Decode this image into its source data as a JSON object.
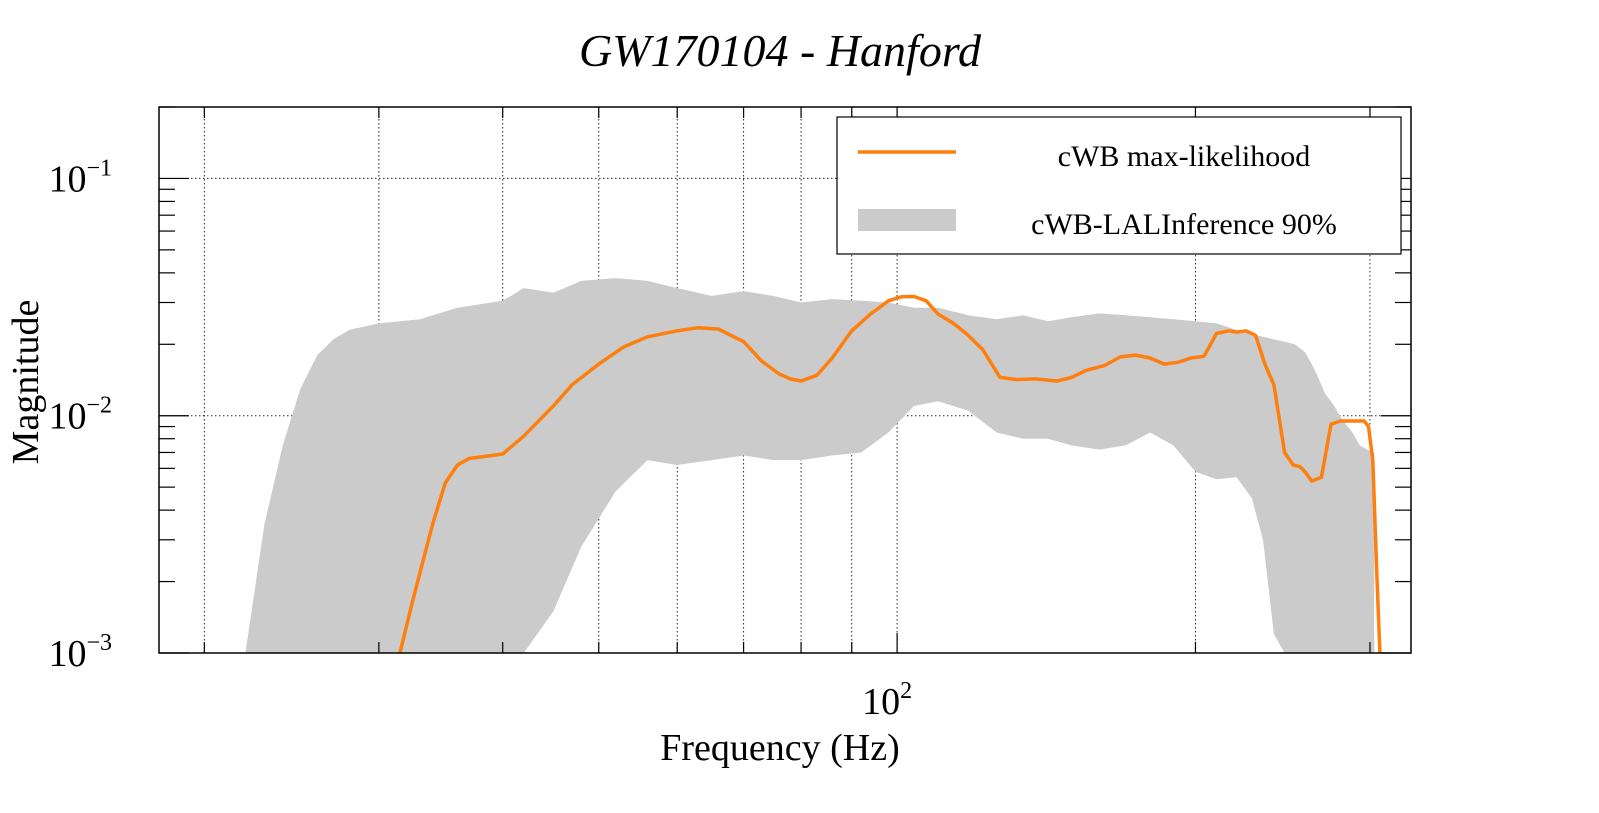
{
  "chart_data": {
    "type": "line",
    "title": "GW170104 - Hanford",
    "xlabel": "Frequency (Hz)",
    "ylabel": "Magnitude",
    "xscale": "log",
    "yscale": "log",
    "xlim": [
      18,
      330
    ],
    "ylim": [
      0.001,
      0.2
    ],
    "grid": true,
    "x_tick_labels": [
      {
        "value": 100,
        "base": "10",
        "exp": "2"
      }
    ],
    "y_tick_labels": [
      {
        "value": 0.001,
        "base": "10",
        "exp": "−3"
      },
      {
        "value": 0.01,
        "base": "10",
        "exp": "−2"
      },
      {
        "value": 0.1,
        "base": "10",
        "exp": "−1"
      }
    ],
    "legend": {
      "position": "top-right",
      "entries": [
        {
          "label": "cWB max-likelihood",
          "kind": "line"
        },
        {
          "label": "cWB-LALInference 90%",
          "kind": "band"
        }
      ]
    },
    "colors": {
      "line": "#ff7f0e",
      "band": "#cbcbcb"
    },
    "series": [
      {
        "name": "cWB max-likelihood",
        "kind": "line",
        "x": [
          31.5,
          32.5,
          34,
          35,
          36,
          37,
          38,
          40,
          42,
          45,
          47,
          50,
          53,
          56,
          60,
          63,
          66,
          70,
          73,
          76,
          78,
          80,
          83,
          86,
          90,
          94,
          98,
          101,
          104,
          107,
          110,
          114,
          118,
          122,
          127,
          132,
          138,
          145,
          150,
          155,
          162,
          168,
          174,
          180,
          186,
          192,
          198,
          204,
          210,
          216,
          220,
          225,
          230,
          235,
          240,
          246,
          251,
          255,
          258,
          262,
          268,
          274,
          280,
          286,
          292,
          296,
          299,
          302,
          305,
          307
        ],
        "y": [
          0.001,
          0.0017,
          0.0035,
          0.0052,
          0.0062,
          0.0066,
          0.0067,
          0.0069,
          0.0082,
          0.011,
          0.0135,
          0.0165,
          0.0195,
          0.0215,
          0.0228,
          0.0235,
          0.0232,
          0.0205,
          0.017,
          0.015,
          0.0143,
          0.014,
          0.0148,
          0.0175,
          0.0228,
          0.0268,
          0.0305,
          0.0317,
          0.0318,
          0.0305,
          0.0268,
          0.0245,
          0.0218,
          0.019,
          0.0145,
          0.0142,
          0.0143,
          0.014,
          0.0145,
          0.0155,
          0.0163,
          0.0177,
          0.018,
          0.0175,
          0.0165,
          0.0168,
          0.0175,
          0.0178,
          0.0222,
          0.0228,
          0.0225,
          0.0228,
          0.0218,
          0.0165,
          0.0135,
          0.007,
          0.0062,
          0.0061,
          0.0058,
          0.0053,
          0.0055,
          0.0092,
          0.0095,
          0.0095,
          0.0095,
          0.0095,
          0.009,
          0.0065,
          0.002,
          0.001
        ]
      },
      {
        "name": "cWB-LALInference 90%",
        "kind": "band",
        "x": [
          22,
          23,
          24,
          25,
          26,
          27,
          28,
          30,
          33,
          36,
          40,
          42,
          45,
          48,
          52,
          56,
          60,
          65,
          70,
          75,
          80,
          86,
          92,
          98,
          104,
          110,
          118,
          126,
          134,
          142,
          150,
          160,
          170,
          180,
          190,
          200,
          210,
          220,
          228,
          234,
          240,
          246,
          252,
          258,
          262,
          266,
          270,
          276,
          282,
          288,
          293,
          298,
          303
        ],
        "upper": [
          0.001,
          0.0035,
          0.0075,
          0.013,
          0.018,
          0.021,
          0.023,
          0.0245,
          0.0255,
          0.0285,
          0.0305,
          0.0345,
          0.033,
          0.037,
          0.038,
          0.037,
          0.0345,
          0.032,
          0.0335,
          0.032,
          0.03,
          0.031,
          0.0305,
          0.03,
          0.0285,
          0.0285,
          0.0265,
          0.0255,
          0.0265,
          0.025,
          0.026,
          0.027,
          0.0265,
          0.026,
          0.0255,
          0.025,
          0.0245,
          0.023,
          0.022,
          0.0215,
          0.021,
          0.0205,
          0.02,
          0.0185,
          0.0165,
          0.0145,
          0.0125,
          0.011,
          0.0095,
          0.0085,
          0.0075,
          0.0072,
          0.007
        ],
        "lower": [
          0.001,
          0.001,
          0.001,
          0.001,
          0.001,
          0.001,
          0.001,
          0.001,
          0.001,
          0.001,
          0.001,
          0.001,
          0.0015,
          0.0028,
          0.0048,
          0.0065,
          0.0062,
          0.0065,
          0.0068,
          0.0065,
          0.0065,
          0.0068,
          0.007,
          0.0085,
          0.011,
          0.0115,
          0.0105,
          0.0085,
          0.008,
          0.008,
          0.0075,
          0.0072,
          0.0075,
          0.0085,
          0.0075,
          0.0058,
          0.0054,
          0.0055,
          0.0045,
          0.003,
          0.0012,
          0.001,
          0.001,
          0.001,
          0.001,
          0.001,
          0.001,
          0.001,
          0.001,
          0.001,
          0.001,
          0.001,
          0.001
        ]
      }
    ]
  }
}
